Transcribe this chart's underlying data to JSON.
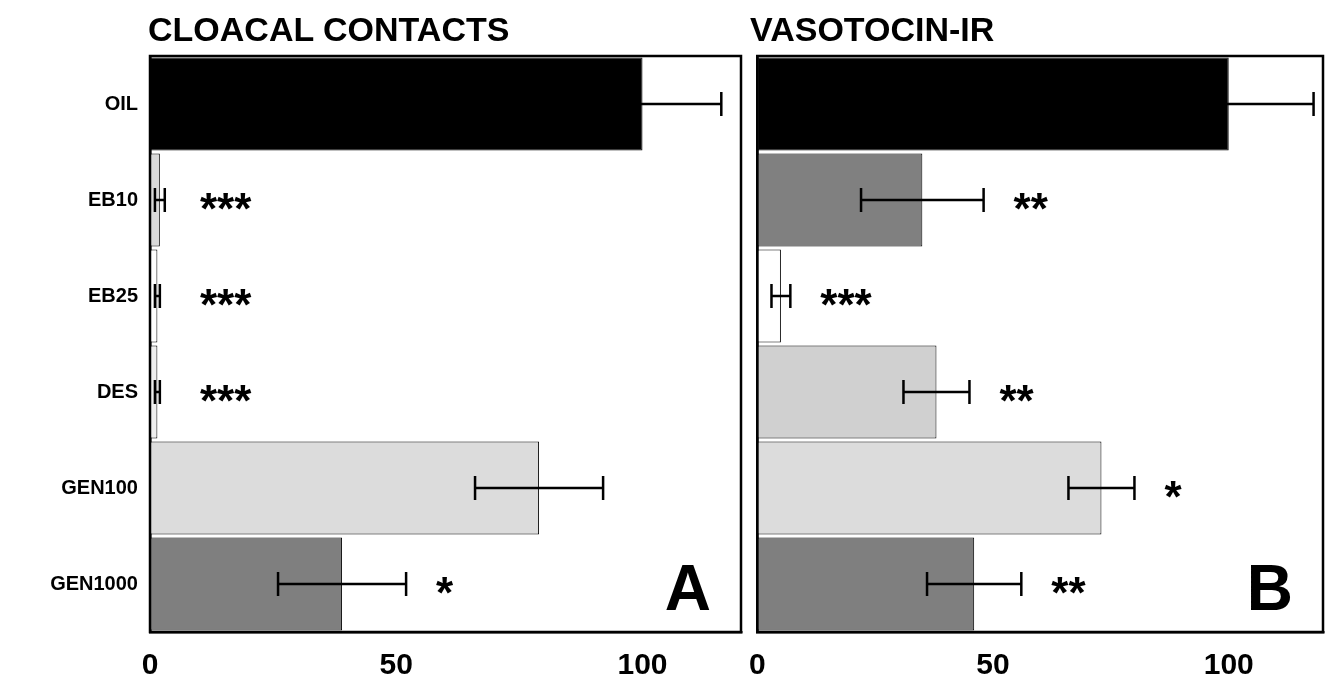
{
  "chart_data": [
    {
      "type": "bar",
      "orientation": "horizontal",
      "title": "CLOACAL CONTACTS",
      "categories": [
        "OIL",
        "EB10",
        "EB25",
        "DES",
        "GEN100",
        "GEN1000"
      ],
      "values": [
        100,
        2,
        1.5,
        1.5,
        79,
        39
      ],
      "errors": [
        16,
        1,
        0.5,
        0.5,
        13,
        13
      ],
      "colors": [
        "#000000",
        "#d9d9d9",
        "#ffffff",
        "#eeeeee",
        "#dcdcdc",
        "#7f7f7f"
      ],
      "xlim": [
        0,
        120
      ],
      "xticks": [
        0,
        50,
        100
      ],
      "grid": false,
      "legend": false,
      "value_labels": [
        null,
        "***",
        "***",
        "***",
        null,
        "*"
      ],
      "annotations": [
        "A"
      ]
    },
    {
      "type": "bar",
      "orientation": "horizontal",
      "title": "VASOTOCIN-IR",
      "categories": [
        null,
        null,
        null,
        null,
        null,
        null
      ],
      "values": [
        100,
        35,
        5,
        38,
        73,
        46
      ],
      "errors": [
        18,
        13,
        2,
        7,
        7,
        10
      ],
      "colors": [
        "#000000",
        "#808080",
        "#ffffff",
        "#d0d0d0",
        "#dcdcdc",
        "#7f7f7f"
      ],
      "xlim": [
        0,
        120
      ],
      "xticks": [
        0,
        50,
        100
      ],
      "grid": false,
      "legend": false,
      "tick_labels": "x",
      "value_labels": [
        null,
        "**",
        "***",
        "**",
        "*",
        "**"
      ],
      "annotations": [
        "B"
      ]
    }
  ]
}
